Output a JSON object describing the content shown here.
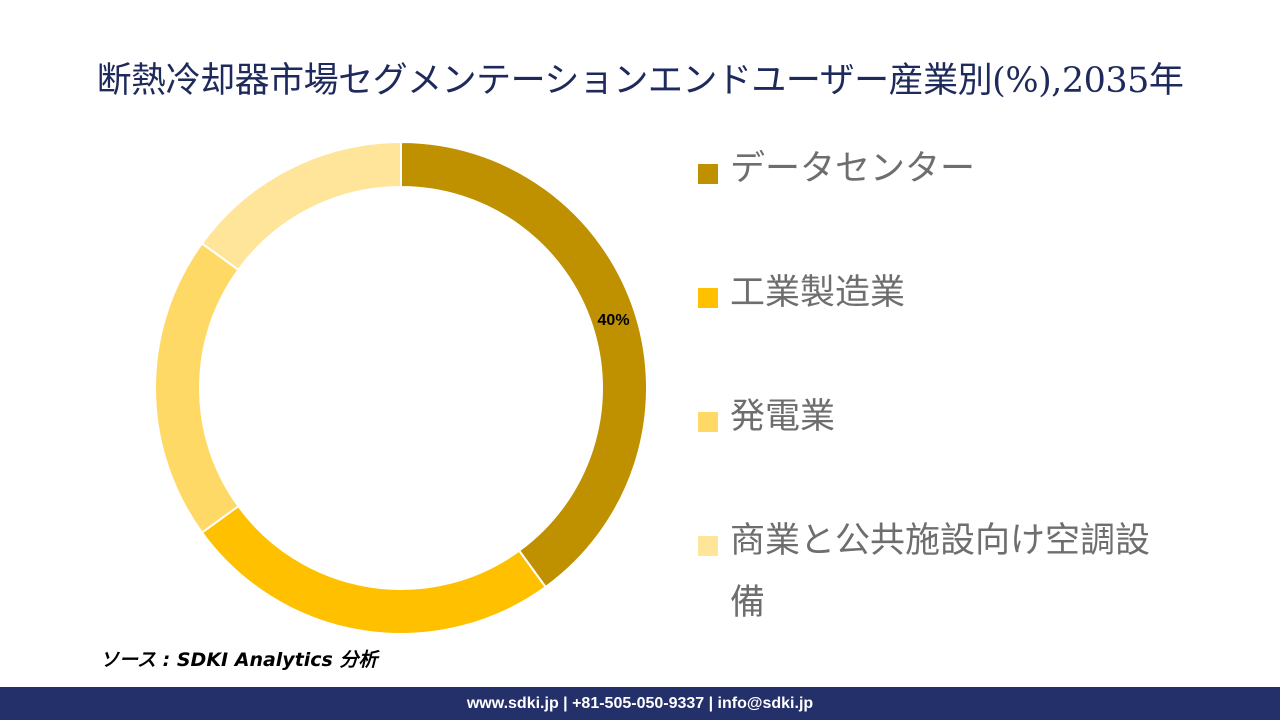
{
  "title": "断熱冷却器市場セグメンテーションエンドユーザー産業別(%),2035年",
  "chart_data": {
    "type": "pie",
    "subtype": "donut",
    "title": "断熱冷却器市場セグメンテーションエンドユーザー産業別(%),2035年",
    "categories": [
      "データセンター",
      "工業製造業",
      "発電業",
      "商業と公共施設向け空調設備"
    ],
    "values": [
      40,
      25,
      20,
      15
    ],
    "colors": [
      "#bf9000",
      "#ffc000",
      "#ffd966",
      "#ffe599"
    ],
    "data_labels": [
      "40%",
      "",
      "",
      ""
    ],
    "legend": "right"
  },
  "legend": {
    "items": [
      {
        "label": "データセンター",
        "color": "#bf9000"
      },
      {
        "label": "工業製造業",
        "color": "#ffc000"
      },
      {
        "label": "発電業",
        "color": "#ffd966"
      },
      {
        "label": "商業と公共施設向け空調設備",
        "color": "#ffe599"
      }
    ]
  },
  "source": "ソース : SDKI Analytics 分析",
  "footer": "www.sdki.jp | +81-505-050-9337 | info@sdki.jp"
}
